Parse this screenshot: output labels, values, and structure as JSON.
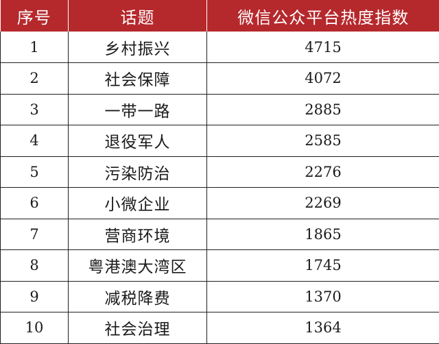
{
  "chart_data": {
    "type": "table",
    "columns": [
      "序号",
      "话题",
      "微信公众平台热度指数"
    ],
    "rows": [
      {
        "rank": "1",
        "topic": "乡村振兴",
        "index": "4715"
      },
      {
        "rank": "2",
        "topic": "社会保障",
        "index": "4072"
      },
      {
        "rank": "3",
        "topic": "一带一路",
        "index": "2885"
      },
      {
        "rank": "4",
        "topic": "退役军人",
        "index": "2585"
      },
      {
        "rank": "5",
        "topic": "污染防治",
        "index": "2276"
      },
      {
        "rank": "6",
        "topic": "小微企业",
        "index": "2269"
      },
      {
        "rank": "7",
        "topic": "营商环境",
        "index": "1865"
      },
      {
        "rank": "8",
        "topic": "粤港澳大湾区",
        "index": "1745"
      },
      {
        "rank": "9",
        "topic": "减税降费",
        "index": "1370"
      },
      {
        "rank": "10",
        "topic": "社会治理",
        "index": "1364"
      }
    ]
  },
  "colors": {
    "header_bg": "#b5282c",
    "header_text": "#ffffff",
    "border": "#1e1e1e"
  }
}
